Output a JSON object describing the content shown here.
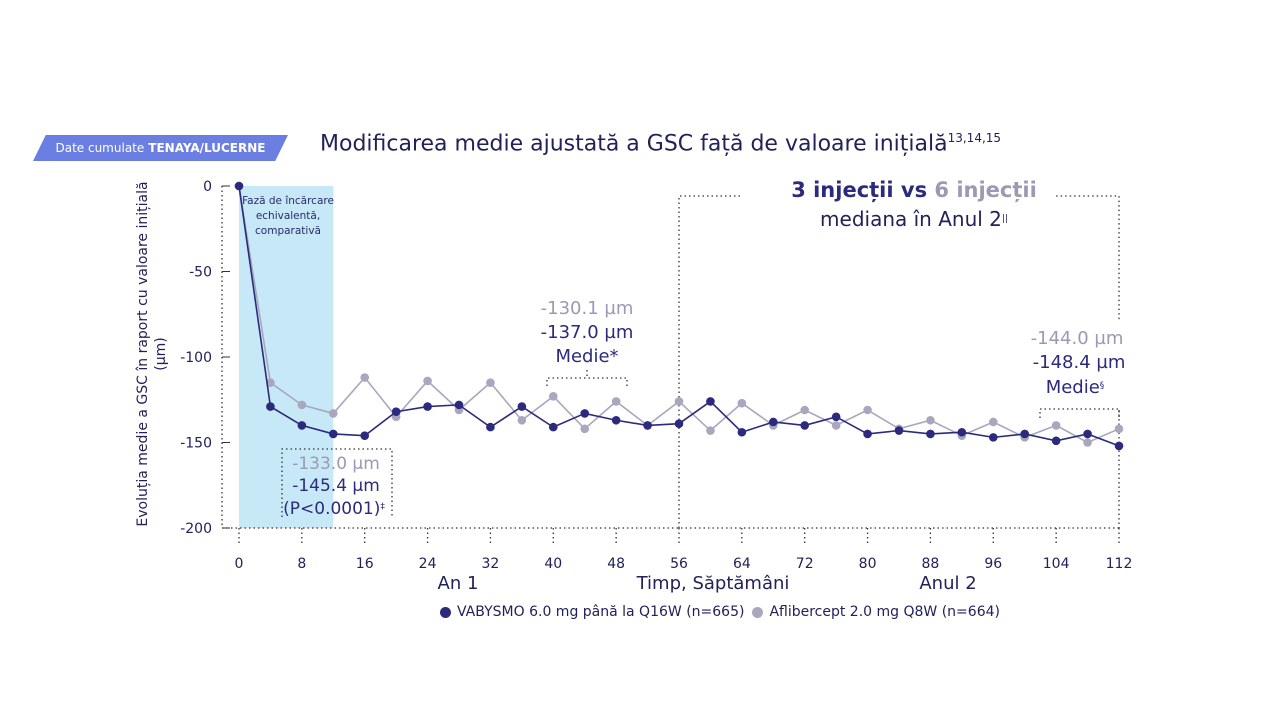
{
  "badge": {
    "prefix": "Date cumulate",
    "bold": "TENAYA/LUCERNE"
  },
  "title": {
    "text": "Modificarea medie ajustată a GSC față de valoare inițială",
    "sup": "13,14,15"
  },
  "colors": {
    "vabysmo": "#2b2a7d",
    "aflibercept": "#a9a7bd",
    "loading_bg": "#c7e9f7",
    "badge": "#6b7fe3"
  },
  "chart_data": {
    "type": "line",
    "ylabel": "Evoluția medie a GSC în raport cu valoare inițială (µm)",
    "xlabel": "Timp, Săptămâni",
    "ylim": [
      -200,
      0
    ],
    "yticks": [
      0,
      -50,
      -100,
      -150,
      -200
    ],
    "xlim": [
      0,
      112
    ],
    "xticks": [
      0,
      8,
      16,
      24,
      32,
      40,
      48,
      56,
      64,
      72,
      80,
      88,
      96,
      104,
      112
    ],
    "grid": false,
    "legend_position": "bottom",
    "series": [
      {
        "name": "VABYSMO 6.0 mg până la Q16W (n=665)",
        "color": "#2b2a7d",
        "x": [
          0,
          4,
          8,
          12,
          16,
          20,
          24,
          28,
          32,
          36,
          40,
          44,
          48,
          52,
          56,
          60,
          64,
          68,
          72,
          76,
          80,
          84,
          88,
          92,
          96,
          100,
          104,
          108,
          112
        ],
        "y": [
          0,
          -129,
          -140,
          -145,
          -146,
          -132,
          -129,
          -128,
          -141,
          -129,
          -141,
          -133,
          -137,
          -140,
          -139,
          -126,
          -144,
          -138,
          -140,
          -135,
          -145,
          -143,
          -145,
          -144,
          -147,
          -145,
          -149,
          -145,
          -152
        ]
      },
      {
        "name": "Aflibercept 2.0 mg Q8W (n=664)",
        "color": "#a9a7bd",
        "x": [
          0,
          4,
          8,
          12,
          16,
          20,
          24,
          28,
          32,
          36,
          40,
          44,
          48,
          52,
          56,
          60,
          64,
          68,
          72,
          76,
          80,
          84,
          88,
          92,
          96,
          100,
          104,
          108,
          112
        ],
        "y": [
          0,
          -115,
          -128,
          -133,
          -112,
          -135,
          -114,
          -131,
          -115,
          -137,
          -123,
          -142,
          -126,
          -140,
          -126,
          -143,
          -127,
          -140,
          -131,
          -140,
          -131,
          -142,
          -137,
          -146,
          -138,
          -147,
          -140,
          -150,
          -142
        ]
      }
    ],
    "annotations": {
      "loading_phase": "Fază de încărcare echivalentă, comparativă",
      "loading_range": [
        0,
        12
      ],
      "w12": {
        "aflib": "-133.0 µm",
        "vab": "-145.4 µm",
        "p": "(P<0.0001)",
        "p_sup": "‡"
      },
      "yr1": {
        "aflib": "-130.1 µm",
        "vab": "-137.0 µm",
        "label": "Medie*"
      },
      "yr2": {
        "aflib": "-144.0 µm",
        "vab": "-148.4 µm",
        "label": "Medie",
        "label_sup": "§"
      },
      "inj": {
        "a": "3 injecții",
        "vs": "vs",
        "b": "6 injecții",
        "line2": "mediana în Anul 2",
        "line2_sup": "||"
      },
      "year1": "An 1",
      "year2": "Anul 2"
    }
  }
}
